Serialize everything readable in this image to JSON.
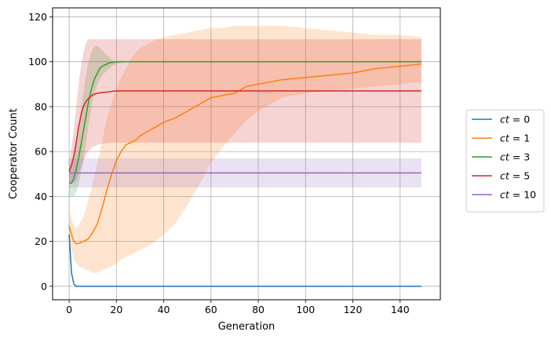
{
  "chart_data": {
    "type": "line",
    "xlabel": "Generation",
    "ylabel": "Cooperator Count",
    "xlim": [
      -7,
      157
    ],
    "ylim": [
      -6,
      124
    ],
    "xticks": [
      0,
      20,
      40,
      60,
      80,
      100,
      120,
      140
    ],
    "yticks": [
      0,
      20,
      40,
      60,
      80,
      100,
      120
    ],
    "grid": true,
    "legend_position": "outside-right",
    "series": [
      {
        "name": "ct = 0",
        "legend_var": "ct",
        "legend_value": "= 0",
        "color": "#1f77b4",
        "x": [
          0,
          1,
          2,
          3,
          4,
          5,
          10,
          149
        ],
        "y": [
          23,
          6,
          1,
          0,
          0,
          0,
          0,
          0
        ]
      },
      {
        "name": "ct = 1",
        "legend_var": "ct",
        "legend_value": "= 1",
        "color": "#ff7f0e",
        "x": [
          0,
          1,
          2,
          3,
          4,
          6,
          8,
          10,
          12,
          14,
          16,
          18,
          20,
          22,
          24,
          26,
          28,
          30,
          35,
          40,
          45,
          50,
          55,
          60,
          65,
          70,
          75,
          80,
          90,
          100,
          110,
          120,
          130,
          140,
          149
        ],
        "y": [
          27,
          23,
          20,
          19,
          19,
          20,
          21,
          24,
          28,
          35,
          43,
          50,
          56,
          60,
          63,
          64,
          65,
          67,
          70,
          73,
          75,
          78,
          81,
          84,
          85,
          86,
          89,
          90,
          92,
          93,
          94,
          95,
          97,
          98,
          99
        ],
        "band_lower": [
          20,
          16,
          12,
          10,
          9,
          8,
          7,
          6,
          6,
          7,
          8,
          9,
          10,
          12,
          13,
          14,
          15,
          16,
          19,
          23,
          28,
          36,
          45,
          55,
          62,
          68,
          74,
          78,
          84,
          86,
          87,
          88,
          89,
          90,
          91
        ],
        "band_upper": [
          34,
          30,
          27,
          26,
          27,
          31,
          38,
          46,
          55,
          65,
          75,
          82,
          88,
          93,
          97,
          101,
          104,
          106,
          109,
          111,
          112,
          113,
          114,
          115,
          115,
          116,
          116,
          116,
          116,
          115,
          114,
          113,
          112,
          112,
          111
        ]
      },
      {
        "name": "ct = 3",
        "legend_var": "ct",
        "legend_value": "= 3",
        "color": "#2ca02c",
        "x": [
          0,
          1,
          2,
          3,
          4,
          5,
          6,
          7,
          8,
          9,
          10,
          11,
          12,
          13,
          14,
          15,
          16,
          17,
          18,
          20,
          25,
          149
        ],
        "y": [
          46,
          46,
          48,
          52,
          57,
          63,
          69,
          75,
          81,
          86,
          90,
          93,
          95,
          97,
          98,
          98.5,
          99,
          99.5,
          99.7,
          100,
          100,
          100
        ],
        "band_lower": [
          40,
          40,
          40,
          42,
          45,
          50,
          56,
          63,
          70,
          77,
          83,
          87,
          90,
          92,
          94,
          95,
          96,
          97,
          98,
          99,
          100,
          100
        ],
        "band_upper": [
          52,
          54,
          58,
          64,
          71,
          79,
          86,
          93,
          99,
          103,
          106,
          107,
          107,
          106,
          105,
          104,
          103,
          102,
          101,
          100,
          100,
          100
        ]
      },
      {
        "name": "ct = 5",
        "legend_var": "ct",
        "legend_value": "= 5",
        "color": "#d62728",
        "x": [
          0,
          1,
          2,
          3,
          4,
          5,
          6,
          7,
          8,
          9,
          10,
          11,
          12,
          14,
          16,
          18,
          20,
          30,
          149
        ],
        "y": [
          51,
          54,
          58,
          64,
          71,
          76,
          80,
          82,
          83.5,
          84.5,
          85.2,
          85.7,
          86,
          86.3,
          86.5,
          86.8,
          87,
          87,
          87
        ],
        "band_lower": [
          47,
          46,
          46,
          47,
          50,
          53,
          56,
          58,
          60,
          61,
          62,
          62.5,
          63,
          63.5,
          63.8,
          64,
          64,
          64,
          64
        ],
        "band_upper": [
          55,
          62,
          70,
          80,
          90,
          98,
          104,
          108,
          110,
          110,
          110,
          110,
          110,
          110,
          110,
          110,
          110,
          110,
          110
        ]
      },
      {
        "name": "ct = 10",
        "legend_var": "ct",
        "legend_value": "= 10",
        "color": "#9467bd",
        "x": [
          0,
          149
        ],
        "y": [
          50.5,
          50.5
        ],
        "band_lower": [
          44,
          44
        ],
        "band_upper": [
          57,
          57
        ]
      }
    ]
  }
}
